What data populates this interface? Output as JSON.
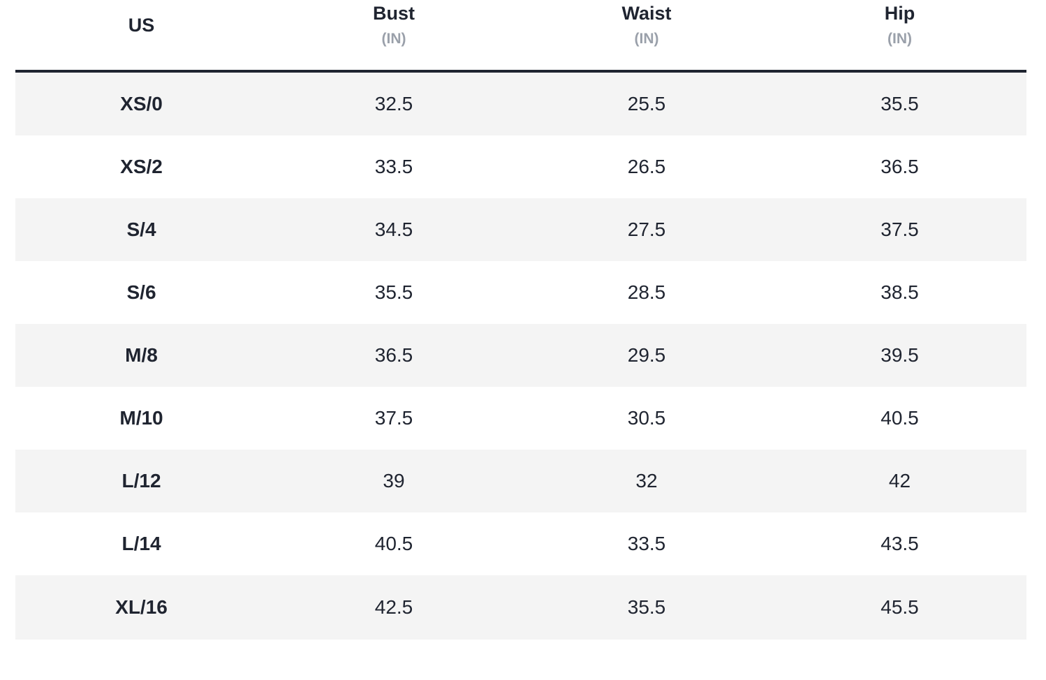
{
  "table": {
    "headers": [
      {
        "title": "US",
        "unit": ""
      },
      {
        "title": "Bust",
        "unit": "(IN)"
      },
      {
        "title": "Waist",
        "unit": "(IN)"
      },
      {
        "title": "Hip",
        "unit": "(IN)"
      }
    ],
    "rows": [
      {
        "size": "XS/0",
        "bust": "32.5",
        "waist": "25.5",
        "hip": "35.5"
      },
      {
        "size": "XS/2",
        "bust": "33.5",
        "waist": "26.5",
        "hip": "36.5"
      },
      {
        "size": "S/4",
        "bust": "34.5",
        "waist": "27.5",
        "hip": "37.5"
      },
      {
        "size": "S/6",
        "bust": "35.5",
        "waist": "28.5",
        "hip": "38.5"
      },
      {
        "size": "M/8",
        "bust": "36.5",
        "waist": "29.5",
        "hip": "39.5"
      },
      {
        "size": "M/10",
        "bust": "37.5",
        "waist": "30.5",
        "hip": "40.5"
      },
      {
        "size": "L/12",
        "bust": "39",
        "waist": "32",
        "hip": "42"
      },
      {
        "size": "L/14",
        "bust": "40.5",
        "waist": "33.5",
        "hip": "43.5"
      },
      {
        "size": "XL/16",
        "bust": "42.5",
        "waist": "35.5",
        "hip": "45.5"
      }
    ]
  },
  "colors": {
    "text": "#1f2430",
    "unit_text": "#9aa0aa",
    "row_shade": "#f4f4f4",
    "header_rule": "#1f2430"
  }
}
